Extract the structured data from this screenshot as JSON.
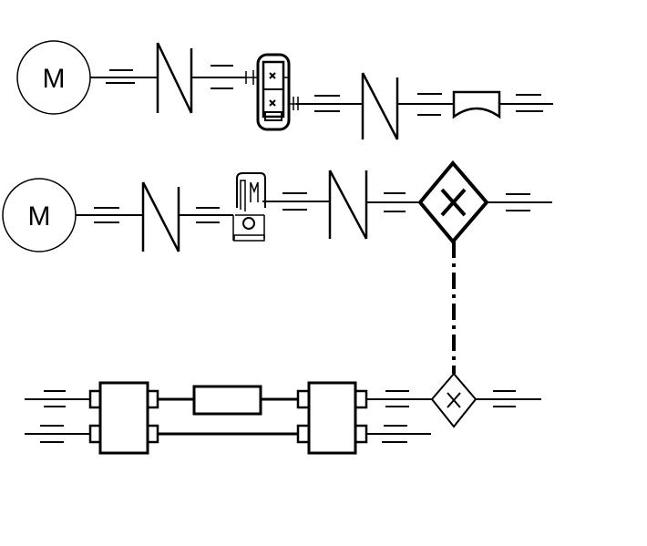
{
  "motors": [
    {
      "label": "M"
    },
    {
      "label": "M"
    }
  ]
}
